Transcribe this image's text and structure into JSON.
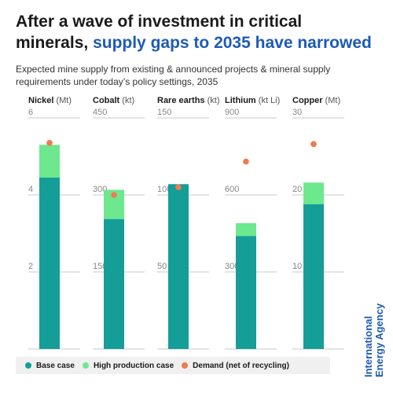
{
  "title": {
    "line1": "After a wave of investment in critical",
    "line2_plain": "minerals, ",
    "line2_accent": "supply gaps to 2035 have narrowed"
  },
  "subtitle": "Expected mine supply from existing & announced projects & mineral supply requirements under today’s policy settings, 2035",
  "colors": {
    "base": "#149e97",
    "high": "#6de88f",
    "demand": "#f07a50",
    "accent": "#1e5ab6",
    "grid": "#c8c8c8",
    "legend_bg": "#f0f0f0"
  },
  "legend": {
    "base": "Base case",
    "high": "High production case",
    "demand": "Demand (net of recycling)"
  },
  "logo": {
    "line1": "International",
    "line2": "Energy Agency"
  },
  "chart_data": {
    "type": "bar",
    "grid": true,
    "panels": [
      {
        "name": "Nickel",
        "unit": "(Mt)",
        "ticks": [
          "6",
          "4",
          "2"
        ],
        "tick_values": [
          6,
          4,
          2
        ],
        "ymax": 6,
        "base": 4.45,
        "high": 5.3,
        "demand": 5.35
      },
      {
        "name": "Cobalt",
        "unit": "(kt)",
        "ticks": [
          "450",
          "300",
          "150"
        ],
        "tick_values": [
          450,
          300,
          150
        ],
        "ymax": 450,
        "base": 253,
        "high": 310,
        "demand": 300
      },
      {
        "name": "Rare earths",
        "unit": "(kt)",
        "ticks": [
          "150",
          "100",
          "50"
        ],
        "tick_values": [
          150,
          100,
          50
        ],
        "ymax": 150,
        "base": 107,
        "high": 107,
        "demand": 105
      },
      {
        "name": "Lithium",
        "unit": "(kt Li)",
        "ticks": [
          "900",
          "600",
          "300"
        ],
        "tick_values": [
          900,
          600,
          300
        ],
        "ymax": 900,
        "base": 440,
        "high": 490,
        "demand": 730
      },
      {
        "name": "Copper",
        "unit": "(Mt)",
        "ticks": [
          "30",
          "20",
          "10"
        ],
        "tick_values": [
          30,
          20,
          10
        ],
        "ymax": 30,
        "base": 18.8,
        "high": 21.6,
        "demand": 26.6
      }
    ]
  }
}
